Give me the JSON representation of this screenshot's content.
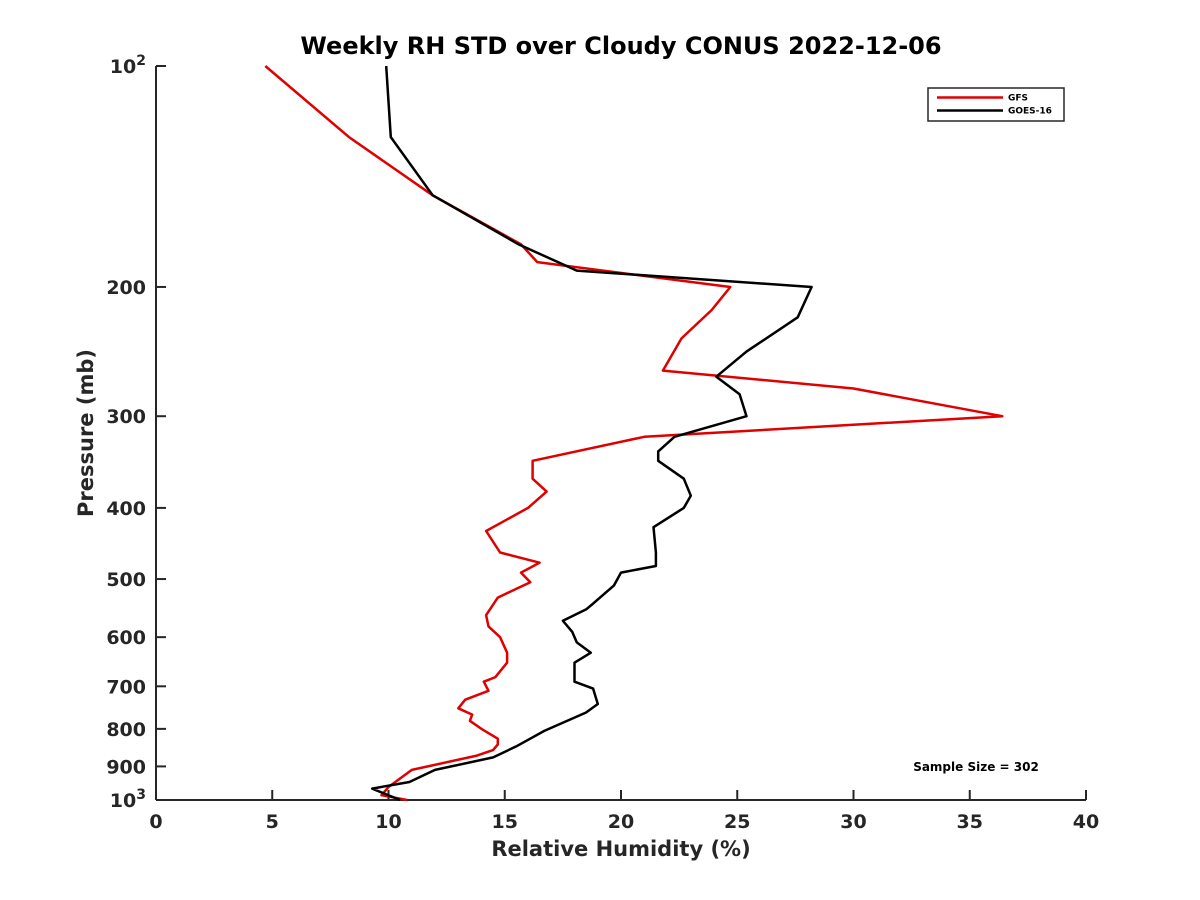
{
  "chart_data": {
    "type": "line",
    "title": "Weekly RH STD over Cloudy CONUS 2022-12-06",
    "xlabel": "Relative Humidity (%)",
    "ylabel": "Pressure (mb)",
    "xlim": [
      0,
      40
    ],
    "ylim": [
      1000,
      100
    ],
    "yscale": "log",
    "y_reversed": true,
    "grid": false,
    "x_ticks": [
      0,
      5,
      10,
      15,
      20,
      25,
      30,
      35,
      40
    ],
    "x_tick_labels": [
      "0",
      "5",
      "10",
      "15",
      "20",
      "25",
      "30",
      "35",
      "40"
    ],
    "y_ticks": [
      100,
      200,
      300,
      400,
      500,
      600,
      700,
      800,
      900,
      1000
    ],
    "y_tick_labels": [
      {
        "text": "10",
        "sup": "2"
      },
      {
        "text": "200",
        "sup": ""
      },
      {
        "text": "300",
        "sup": ""
      },
      {
        "text": "400",
        "sup": ""
      },
      {
        "text": "500",
        "sup": ""
      },
      {
        "text": "600",
        "sup": ""
      },
      {
        "text": "700",
        "sup": ""
      },
      {
        "text": "800",
        "sup": ""
      },
      {
        "text": "900",
        "sup": ""
      },
      {
        "text": "10",
        "sup": "3"
      }
    ],
    "legend_position": "top-right",
    "series": [
      {
        "name": "GFS",
        "color": "#e00000",
        "points": [
          [
            4.7,
            100
          ],
          [
            8.3,
            125
          ],
          [
            11.9,
            150
          ],
          [
            15.7,
            175
          ],
          [
            16.4,
            185
          ],
          [
            24.7,
            200
          ],
          [
            23.9,
            215
          ],
          [
            22.6,
            235
          ],
          [
            21.8,
            260
          ],
          [
            30.0,
            275
          ],
          [
            36.4,
            300
          ],
          [
            21.0,
            320
          ],
          [
            16.2,
            345
          ],
          [
            16.2,
            365
          ],
          [
            16.8,
            380
          ],
          [
            16.0,
            400
          ],
          [
            14.2,
            430
          ],
          [
            14.8,
            460
          ],
          [
            16.5,
            475
          ],
          [
            15.7,
            490
          ],
          [
            16.1,
            505
          ],
          [
            14.7,
            530
          ],
          [
            14.2,
            560
          ],
          [
            14.3,
            580
          ],
          [
            14.8,
            600
          ],
          [
            15.1,
            630
          ],
          [
            15.1,
            650
          ],
          [
            14.6,
            680
          ],
          [
            14.1,
            690
          ],
          [
            14.3,
            710
          ],
          [
            13.3,
            730
          ],
          [
            13.0,
            750
          ],
          [
            13.6,
            765
          ],
          [
            13.5,
            780
          ],
          [
            14.0,
            800
          ],
          [
            14.7,
            825
          ],
          [
            14.7,
            840
          ],
          [
            14.5,
            855
          ],
          [
            13.8,
            870
          ],
          [
            11.0,
            910
          ],
          [
            10.0,
            960
          ],
          [
            9.7,
            985
          ],
          [
            10.8,
            1000
          ]
        ]
      },
      {
        "name": "GOES-16",
        "color": "#000000",
        "points": [
          [
            9.9,
            100
          ],
          [
            10.1,
            125
          ],
          [
            11.9,
            150
          ],
          [
            15.6,
            175
          ],
          [
            18.1,
            190
          ],
          [
            28.2,
            200
          ],
          [
            27.6,
            220
          ],
          [
            25.4,
            245
          ],
          [
            24.1,
            265
          ],
          [
            25.1,
            280
          ],
          [
            25.4,
            300
          ],
          [
            22.3,
            320
          ],
          [
            21.6,
            335
          ],
          [
            21.6,
            345
          ],
          [
            22.7,
            365
          ],
          [
            23.0,
            385
          ],
          [
            22.7,
            400
          ],
          [
            21.4,
            425
          ],
          [
            21.5,
            460
          ],
          [
            21.5,
            480
          ],
          [
            20.0,
            490
          ],
          [
            19.7,
            510
          ],
          [
            18.8,
            540
          ],
          [
            18.5,
            550
          ],
          [
            17.5,
            570
          ],
          [
            17.9,
            590
          ],
          [
            18.1,
            610
          ],
          [
            18.7,
            630
          ],
          [
            18.0,
            650
          ],
          [
            18.0,
            690
          ],
          [
            18.8,
            705
          ],
          [
            19.0,
            740
          ],
          [
            18.5,
            760
          ],
          [
            16.7,
            805
          ],
          [
            15.5,
            845
          ],
          [
            14.5,
            875
          ],
          [
            12.0,
            910
          ],
          [
            10.9,
            945
          ],
          [
            9.3,
            965
          ],
          [
            10.5,
            1000
          ]
        ]
      }
    ],
    "annotations": [
      {
        "text": "Sample Size = 302",
        "position": "bottom-right"
      }
    ]
  }
}
